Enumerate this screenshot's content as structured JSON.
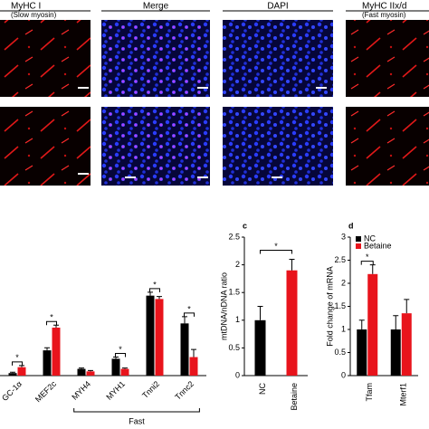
{
  "header": {
    "panels": [
      {
        "title": "MyHC I",
        "subtitle": "(Slow myosin)"
      },
      {
        "title": "Merge"
      },
      {
        "title": "DAPI"
      },
      {
        "title": "MyHC IIx/d",
        "subtitle": "(Fast myosin)"
      }
    ]
  },
  "chart_data": [
    {
      "type": "bar",
      "categories": [
        "GC-1α",
        "MEF2c",
        "MYH4",
        "MYH1",
        "Tnni2",
        "Tnnc2"
      ],
      "series": [
        {
          "color": "#000000",
          "values": [
            3,
            30,
            8,
            20,
            95,
            62
          ],
          "errors": [
            1,
            3,
            1,
            2,
            4,
            8
          ]
        },
        {
          "color": "#e8141c",
          "values": [
            10,
            57,
            5,
            8,
            91,
            22
          ],
          "errors": [
            2,
            3,
            1,
            1,
            3,
            9
          ]
        }
      ],
      "ylim": [
        0,
        100
      ],
      "groups": [
        {
          "label": "Fast",
          "from": 2,
          "to": 5
        }
      ],
      "significance": [
        {
          "category": 0,
          "label": "*"
        },
        {
          "category": 1,
          "label": "*"
        },
        {
          "category": 3,
          "label": "*"
        },
        {
          "category": 4,
          "label": "*"
        },
        {
          "category": 5,
          "label": "*"
        }
      ]
    },
    {
      "type": "bar",
      "label": "c",
      "y_label": "mtDNA/nDNA ratio",
      "categories": [
        "NC",
        "Betaine"
      ],
      "values": [
        1.0,
        1.9
      ],
      "errors": [
        0.25,
        0.2
      ],
      "colors": [
        "#000000",
        "#e8141c"
      ],
      "ylim": [
        0,
        2.5
      ],
      "yticks": [
        0,
        0.5,
        1,
        1.5,
        2,
        2.5
      ],
      "significance": [
        {
          "label": "*"
        }
      ]
    },
    {
      "type": "bar",
      "label": "d",
      "y_label": "Fold change of mRNA",
      "categories": [
        "Tfam",
        "Mterf1"
      ],
      "series": [
        {
          "name": "NC",
          "color": "#000000",
          "values": [
            1.0,
            1.0
          ],
          "errors": [
            0.2,
            0.3
          ]
        },
        {
          "name": "Betaine",
          "color": "#e8141c",
          "values": [
            2.2,
            1.35
          ],
          "errors": [
            0.2,
            0.3
          ]
        }
      ],
      "ylim": [
        0,
        3
      ],
      "yticks": [
        0,
        0.5,
        1,
        1.5,
        2,
        2.5,
        3
      ],
      "legend": "top-left",
      "significance": [
        {
          "category": 0,
          "label": "*"
        }
      ]
    }
  ]
}
